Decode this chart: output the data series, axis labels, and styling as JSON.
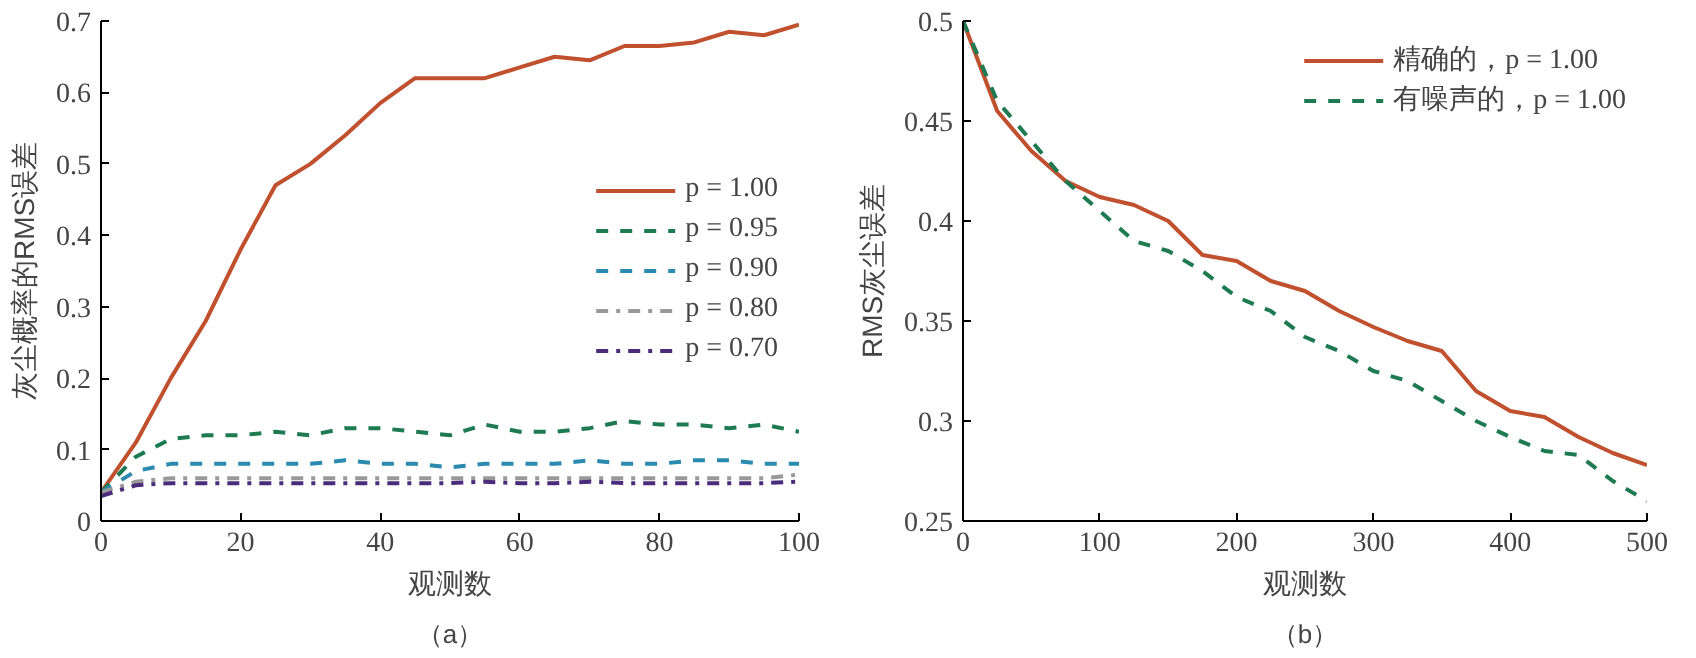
{
  "chart_data": [
    {
      "type": "line",
      "xlabel": "观测数",
      "ylabel": "灰尘概率的RMS误差",
      "annotations": [
        "（a）"
      ],
      "x": [
        0,
        5,
        10,
        15,
        20,
        25,
        30,
        35,
        40,
        45,
        50,
        55,
        60,
        65,
        70,
        75,
        80,
        85,
        90,
        95,
        100
      ],
      "xlim": [
        0,
        100
      ],
      "xticks": [
        0,
        20,
        40,
        60,
        80,
        100
      ],
      "ylim": [
        0,
        0.7
      ],
      "yticks": [
        0,
        0.1,
        0.2,
        0.3,
        0.4,
        0.5,
        0.6,
        0.7
      ],
      "grid": false,
      "legend": "right",
      "marker": "none",
      "series": [
        {
          "name": "p = 1.00",
          "color": "#c0502e",
          "line_style": "solid",
          "values": [
            0.04,
            0.11,
            0.2,
            0.28,
            0.38,
            0.47,
            0.5,
            0.54,
            0.585,
            0.62,
            0.62,
            0.62,
            0.635,
            0.65,
            0.645,
            0.665,
            0.665,
            0.67,
            0.685,
            0.68,
            0.695
          ]
        },
        {
          "name": "p = 0.95",
          "color": "#1e7a50",
          "line_style": "dashed",
          "values": [
            0.04,
            0.09,
            0.115,
            0.12,
            0.12,
            0.125,
            0.12,
            0.13,
            0.13,
            0.125,
            0.12,
            0.135,
            0.125,
            0.125,
            0.13,
            0.14,
            0.135,
            0.135,
            0.13,
            0.135,
            0.125
          ]
        },
        {
          "name": "p = 0.90",
          "color": "#2a8ab0",
          "line_style": "dashed",
          "values": [
            0.04,
            0.07,
            0.08,
            0.08,
            0.08,
            0.08,
            0.08,
            0.085,
            0.08,
            0.08,
            0.075,
            0.08,
            0.08,
            0.08,
            0.085,
            0.08,
            0.08,
            0.085,
            0.085,
            0.08,
            0.08
          ]
        },
        {
          "name": "p = 0.80",
          "color": "#999999",
          "line_style": "dashdot",
          "values": [
            0.04,
            0.055,
            0.06,
            0.06,
            0.06,
            0.06,
            0.06,
            0.06,
            0.06,
            0.06,
            0.06,
            0.06,
            0.06,
            0.06,
            0.06,
            0.06,
            0.06,
            0.06,
            0.06,
            0.06,
            0.065
          ]
        },
        {
          "name": "p = 0.70",
          "color": "#4b2c7a",
          "line_style": "dashdot",
          "values": [
            0.035,
            0.05,
            0.053,
            0.053,
            0.053,
            0.053,
            0.053,
            0.053,
            0.053,
            0.053,
            0.053,
            0.055,
            0.053,
            0.053,
            0.055,
            0.053,
            0.053,
            0.053,
            0.053,
            0.053,
            0.055
          ]
        }
      ]
    },
    {
      "type": "line",
      "xlabel": "观测数",
      "ylabel": "RMS灰尘误差",
      "annotations": [
        "（b）"
      ],
      "x": [
        0,
        25,
        50,
        75,
        100,
        125,
        150,
        175,
        200,
        225,
        250,
        275,
        300,
        325,
        350,
        375,
        400,
        425,
        450,
        475,
        500
      ],
      "xlim": [
        0,
        500
      ],
      "xticks": [
        0,
        100,
        200,
        300,
        400,
        500
      ],
      "ylim": [
        0.25,
        0.5
      ],
      "yticks": [
        0.25,
        0.3,
        0.35,
        0.4,
        0.45,
        0.5
      ],
      "grid": false,
      "legend": "top right",
      "marker": "none",
      "series": [
        {
          "name": "精确的，p = 1.00",
          "color": "#c0502e",
          "line_style": "solid",
          "values": [
            0.5,
            0.455,
            0.435,
            0.42,
            0.412,
            0.408,
            0.4,
            0.383,
            0.38,
            0.37,
            0.365,
            0.355,
            0.347,
            0.34,
            0.335,
            0.315,
            0.305,
            0.302,
            0.292,
            0.284,
            0.278
          ]
        },
        {
          "name": "有噪声的，p = 1.00",
          "color": "#1e7a50",
          "line_style": "dashed",
          "values": [
            0.5,
            0.46,
            0.44,
            0.42,
            0.405,
            0.39,
            0.385,
            0.375,
            0.362,
            0.355,
            0.342,
            0.335,
            0.325,
            0.32,
            0.31,
            0.3,
            0.292,
            0.285,
            0.283,
            0.27,
            0.26
          ]
        }
      ]
    }
  ]
}
